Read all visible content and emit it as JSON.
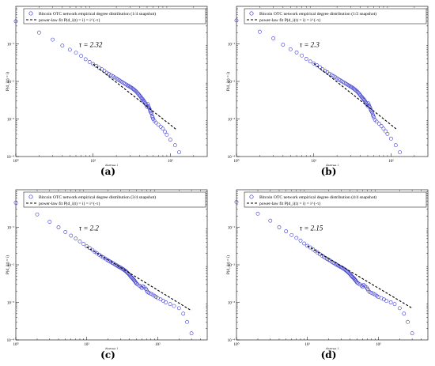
{
  "figure": {
    "panels": [
      {
        "caption": "(a)"
      },
      {
        "caption": "(b)"
      },
      {
        "caption": "(c)"
      },
      {
        "caption": "(d)"
      }
    ]
  },
  "colors": {
    "data": "#3a3ad0",
    "fit": "#000000",
    "axis": "#000000"
  },
  "chart_data": [
    {
      "type": "scatter",
      "xscale": "log",
      "yscale": "log",
      "xlabel": "degree i",
      "ylabel": "P(d_i(t) = i)",
      "xlim": [
        1,
        300
      ],
      "ylim": [
        0.0001,
        1
      ],
      "xticks": [
        {
          "v": 1,
          "label": "10⁰"
        },
        {
          "v": 10,
          "label": "10¹"
        },
        {
          "v": 100,
          "label": "10²"
        }
      ],
      "yticks": [
        {
          "v": 0.0001,
          "label": "10⁻⁴"
        },
        {
          "v": 0.001,
          "label": "10⁻³"
        },
        {
          "v": 0.01,
          "label": "10⁻²"
        },
        {
          "v": 0.1,
          "label": "10⁻¹"
        }
      ],
      "legend_position": "top-right",
      "annotation": "τ = 2.32",
      "series": [
        {
          "name": "Bitcoin OTC network empirical degree distribution (1/4 snapshot)",
          "kind": "markers",
          "x": [
            1,
            2,
            3,
            4,
            5,
            6,
            7,
            8,
            9,
            10,
            11,
            12,
            13,
            14,
            15,
            16,
            17,
            18,
            19,
            20,
            21,
            22,
            23,
            24,
            25,
            26,
            27,
            28,
            29,
            30,
            31,
            32,
            33,
            34,
            35,
            36,
            37,
            38,
            39,
            40,
            41,
            42,
            43,
            44,
            45,
            46,
            47,
            48,
            49,
            50,
            51,
            52,
            53,
            54,
            55,
            56,
            57,
            58,
            59,
            60,
            62,
            65,
            70,
            75,
            80,
            85,
            90,
            100,
            115,
            130
          ],
          "y": [
            0.4,
            0.2,
            0.13,
            0.09,
            0.07,
            0.058,
            0.048,
            0.039,
            0.033,
            0.029,
            0.026,
            0.023,
            0.021,
            0.019,
            0.017,
            0.0158,
            0.0147,
            0.0137,
            0.0128,
            0.012,
            0.0112,
            0.0106,
            0.01,
            0.0095,
            0.009,
            0.0086,
            0.0082,
            0.0078,
            0.0075,
            0.0072,
            0.0069,
            0.0066,
            0.0063,
            0.006,
            0.0057,
            0.0054,
            0.0051,
            0.0048,
            0.0045,
            0.0042,
            0.004,
            0.0037,
            0.0035,
            0.0033,
            0.0031,
            0.0029,
            0.0027,
            0.0025,
            0.0023,
            0.0021,
            0.0025,
            0.0022,
            0.002,
            0.0018,
            0.0016,
            0.0015,
            0.0014,
            0.0012,
            0.0011,
            0.001,
            0.0009,
            0.0008,
            0.0007,
            0.00062,
            0.00055,
            0.00046,
            0.00038,
            0.00028,
            0.0002,
            0.00013
          ]
        },
        {
          "name": "power-law fit P(d_i(t) = i) = i^{-τ}",
          "kind": "dashed-line",
          "x": [
            10,
            120
          ],
          "y": [
            0.029,
            0.00052
          ]
        }
      ]
    },
    {
      "type": "scatter",
      "xscale": "log",
      "yscale": "log",
      "xlabel": "degree i",
      "ylabel": "P(d_i(t) = i)",
      "xlim": [
        1,
        300
      ],
      "ylim": [
        0.0001,
        1
      ],
      "xticks": [
        {
          "v": 1,
          "label": "10⁰"
        },
        {
          "v": 10,
          "label": "10¹"
        },
        {
          "v": 100,
          "label": "10²"
        }
      ],
      "yticks": [
        {
          "v": 0.0001,
          "label": "10⁻⁴"
        },
        {
          "v": 0.001,
          "label": "10⁻³"
        },
        {
          "v": 0.01,
          "label": "10⁻²"
        },
        {
          "v": 0.1,
          "label": "10⁻¹"
        }
      ],
      "legend_position": "top-right",
      "annotation": "τ = 2.3",
      "series": [
        {
          "name": "Bitcoin OTC network empirical degree distribution (1/2 snapshot)",
          "kind": "markers",
          "x": [
            1,
            2,
            3,
            4,
            5,
            6,
            7,
            8,
            9,
            10,
            11,
            12,
            13,
            14,
            15,
            16,
            17,
            18,
            19,
            20,
            21,
            22,
            23,
            24,
            25,
            26,
            27,
            28,
            29,
            30,
            31,
            32,
            33,
            34,
            35,
            36,
            37,
            38,
            39,
            40,
            41,
            42,
            43,
            44,
            45,
            46,
            47,
            48,
            49,
            50,
            51,
            52,
            53,
            54,
            55,
            56,
            57,
            58,
            59,
            60,
            62,
            65,
            70,
            75,
            80,
            85,
            90,
            100,
            115,
            130
          ],
          "y": [
            0.42,
            0.21,
            0.14,
            0.095,
            0.072,
            0.059,
            0.049,
            0.04,
            0.034,
            0.03,
            0.027,
            0.024,
            0.021,
            0.019,
            0.0175,
            0.016,
            0.0149,
            0.0139,
            0.013,
            0.0121,
            0.0113,
            0.0107,
            0.0101,
            0.0096,
            0.0091,
            0.0087,
            0.0083,
            0.0079,
            0.0076,
            0.0073,
            0.007,
            0.0067,
            0.0064,
            0.0061,
            0.0058,
            0.0055,
            0.0052,
            0.0049,
            0.0046,
            0.0043,
            0.004,
            0.0038,
            0.0036,
            0.0034,
            0.0032,
            0.003,
            0.0028,
            0.0026,
            0.0024,
            0.0022,
            0.0026,
            0.0023,
            0.0021,
            0.0019,
            0.0017,
            0.0016,
            0.0015,
            0.0013,
            0.0012,
            0.0011,
            0.00095,
            0.00085,
            0.00075,
            0.00065,
            0.00055,
            0.00047,
            0.0004,
            0.0003,
            0.0002,
            0.00013
          ]
        },
        {
          "name": "power-law fit P(d_i(t) = i) = i^{-τ}",
          "kind": "dashed-line",
          "x": [
            10,
            120
          ],
          "y": [
            0.03,
            0.00052
          ]
        }
      ]
    },
    {
      "type": "scatter",
      "xscale": "log",
      "yscale": "log",
      "xlabel": "degree i",
      "ylabel": "P(d_i(t) = i)",
      "xlim": [
        1,
        500
      ],
      "ylim": [
        0.0001,
        1
      ],
      "xticks": [
        {
          "v": 1,
          "label": "10⁰"
        },
        {
          "v": 10,
          "label": "10¹"
        },
        {
          "v": 100,
          "label": "10²"
        }
      ],
      "yticks": [
        {
          "v": 0.0001,
          "label": "10⁻⁴"
        },
        {
          "v": 0.001,
          "label": "10⁻³"
        },
        {
          "v": 0.01,
          "label": "10⁻²"
        },
        {
          "v": 0.1,
          "label": "10⁻¹"
        }
      ],
      "legend_position": "top-right",
      "annotation": "τ = 2.2",
      "series": [
        {
          "name": "Bitcoin OTC network empirical degree distribution (3/4 snapshot)",
          "kind": "markers",
          "x": [
            1,
            2,
            3,
            4,
            5,
            6,
            7,
            8,
            9,
            10,
            11,
            12,
            13,
            14,
            15,
            16,
            17,
            18,
            19,
            20,
            21,
            22,
            23,
            24,
            25,
            26,
            27,
            28,
            29,
            30,
            31,
            32,
            33,
            34,
            35,
            36,
            37,
            38,
            39,
            40,
            41,
            42,
            43,
            44,
            45,
            46,
            47,
            48,
            49,
            50,
            52,
            55,
            58,
            60,
            62,
            65,
            68,
            70,
            72,
            75,
            80,
            85,
            90,
            95,
            100,
            110,
            120,
            130,
            150,
            170,
            200,
            230,
            260,
            300
          ],
          "y": [
            0.45,
            0.22,
            0.14,
            0.1,
            0.075,
            0.06,
            0.05,
            0.042,
            0.036,
            0.031,
            0.028,
            0.025,
            0.022,
            0.02,
            0.0185,
            0.017,
            0.0158,
            0.0148,
            0.0139,
            0.0131,
            0.0124,
            0.0118,
            0.0112,
            0.0107,
            0.0102,
            0.0098,
            0.0094,
            0.009,
            0.0087,
            0.0084,
            0.0081,
            0.0078,
            0.0075,
            0.0072,
            0.0069,
            0.0066,
            0.0063,
            0.006,
            0.0057,
            0.0054,
            0.0051,
            0.0048,
            0.0046,
            0.0044,
            0.0042,
            0.004,
            0.0038,
            0.0036,
            0.0034,
            0.0032,
            0.003,
            0.0028,
            0.0026,
            0.0024,
            0.0027,
            0.0025,
            0.0023,
            0.0021,
            0.0019,
            0.0018,
            0.0017,
            0.0016,
            0.0015,
            0.0014,
            0.0013,
            0.0012,
            0.0011,
            0.001,
            0.0009,
            0.0008,
            0.0007,
            0.0005,
            0.0003,
            0.00015
          ]
        },
        {
          "name": "power-law fit P(d_i(t) = i) = i^{-τ}",
          "kind": "dashed-line",
          "x": [
            10,
            300
          ],
          "y": [
            0.03,
            0.0006
          ]
        }
      ]
    },
    {
      "type": "scatter",
      "xscale": "log",
      "yscale": "log",
      "xlabel": "degree i",
      "ylabel": "P(d_i(t) = i)",
      "xlim": [
        1,
        500
      ],
      "ylim": [
        0.0001,
        1
      ],
      "xticks": [
        {
          "v": 1,
          "label": "10⁰"
        },
        {
          "v": 10,
          "label": "10¹"
        },
        {
          "v": 100,
          "label": "10²"
        }
      ],
      "yticks": [
        {
          "v": 0.0001,
          "label": "10⁻⁴"
        },
        {
          "v": 0.001,
          "label": "10⁻³"
        },
        {
          "v": 0.01,
          "label": "10⁻²"
        },
        {
          "v": 0.1,
          "label": "10⁻¹"
        }
      ],
      "legend_position": "top-right",
      "annotation": "τ = 2.15",
      "series": [
        {
          "name": "Bitcoin OTC network empirical degree distribution (4/4 snapshot)",
          "kind": "markers",
          "x": [
            1,
            2,
            3,
            4,
            5,
            6,
            7,
            8,
            9,
            10,
            11,
            12,
            13,
            14,
            15,
            16,
            17,
            18,
            19,
            20,
            21,
            22,
            23,
            24,
            25,
            26,
            27,
            28,
            29,
            30,
            31,
            32,
            33,
            34,
            35,
            36,
            37,
            38,
            39,
            40,
            41,
            42,
            43,
            44,
            45,
            46,
            47,
            48,
            49,
            50,
            52,
            55,
            58,
            60,
            62,
            65,
            68,
            70,
            72,
            75,
            80,
            85,
            90,
            95,
            100,
            110,
            120,
            130,
            150,
            170,
            200,
            230,
            260,
            300
          ],
          "y": [
            0.47,
            0.23,
            0.15,
            0.1,
            0.078,
            0.062,
            0.052,
            0.044,
            0.037,
            0.032,
            0.029,
            0.026,
            0.023,
            0.021,
            0.019,
            0.0176,
            0.0163,
            0.0152,
            0.0143,
            0.0135,
            0.0128,
            0.0121,
            0.0115,
            0.011,
            0.0105,
            0.01,
            0.0096,
            0.0092,
            0.0089,
            0.0086,
            0.0083,
            0.008,
            0.0077,
            0.0074,
            0.0071,
            0.0068,
            0.0065,
            0.0062,
            0.0059,
            0.0056,
            0.0053,
            0.005,
            0.0048,
            0.0046,
            0.0044,
            0.0042,
            0.004,
            0.0038,
            0.0036,
            0.0034,
            0.0032,
            0.003,
            0.0028,
            0.0026,
            0.0029,
            0.0027,
            0.0025,
            0.0023,
            0.0021,
            0.0019,
            0.0018,
            0.0017,
            0.0016,
            0.0015,
            0.0014,
            0.0013,
            0.0012,
            0.0011,
            0.001,
            0.0009,
            0.0007,
            0.0005,
            0.0003,
            0.00015
          ]
        },
        {
          "name": "power-law fit P(d_i(t) = i) = i^{-τ}",
          "kind": "dashed-line",
          "x": [
            10,
            300
          ],
          "y": [
            0.032,
            0.0007
          ]
        }
      ]
    }
  ]
}
